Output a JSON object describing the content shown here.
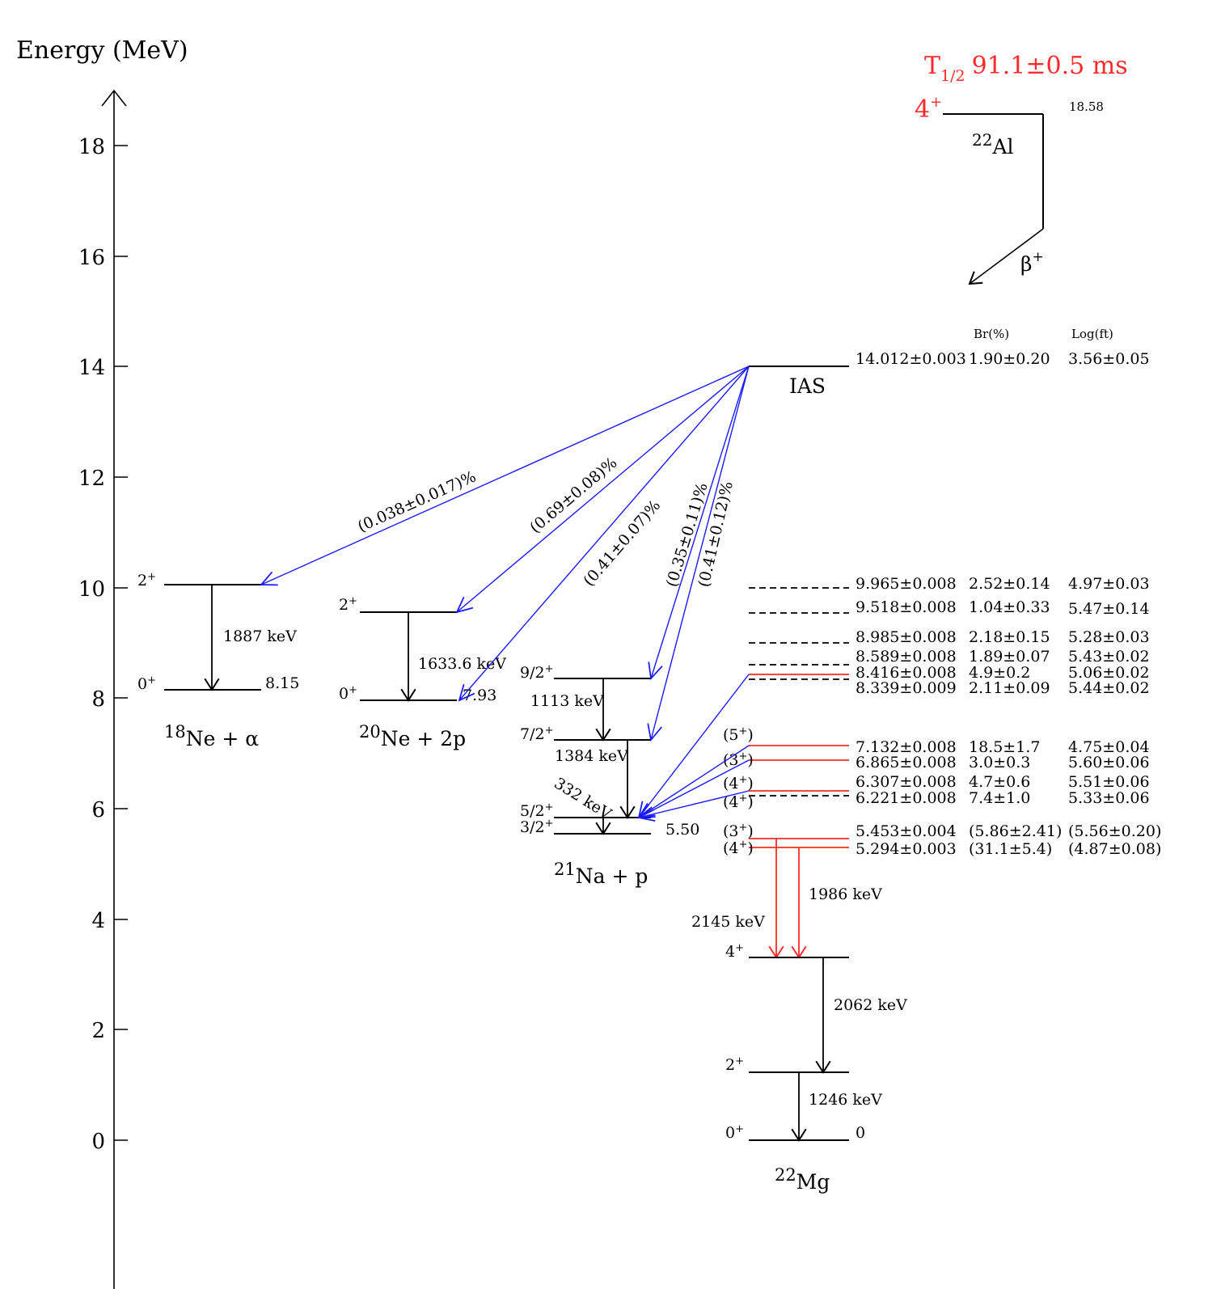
{
  "axis": {
    "title": "Energy (MeV)",
    "ticks": [
      "18",
      "16",
      "14",
      "12",
      "10",
      "8",
      "6",
      "4",
      "2",
      "0"
    ]
  },
  "parent": {
    "isotope_mass": "22",
    "isotope_symbol": "Al",
    "spin": "4",
    "spin_sup": "+",
    "energy": "18.58",
    "halflife_T": "T",
    "halflife_sub": "1/2",
    "halflife_value": "91.1±0.5 ms",
    "decay_label": "β",
    "decay_sup": "+"
  },
  "columns": {
    "br": "Br(%)",
    "logft": "Log(ft)"
  },
  "ias": {
    "label": "IAS",
    "energy": "14.012±0.003",
    "br": "1.90±0.20",
    "logft": "3.56±0.05"
  },
  "mg_states": [
    {
      "energy": "9.965±0.008",
      "br": "2.52±0.14",
      "logft": "4.97±0.03"
    },
    {
      "energy": "9.518±0.008",
      "br": "1.04±0.33",
      "logft": "5.47±0.14"
    },
    {
      "energy": "8.985±0.008",
      "br": "2.18±0.15",
      "logft": "5.28±0.03"
    },
    {
      "energy": "8.589±0.008",
      "br": "1.89±0.07",
      "logft": "5.43±0.02"
    },
    {
      "energy": "8.416±0.008",
      "br": "4.9±0.2",
      "logft": "5.06±0.02"
    },
    {
      "energy": "8.339±0.009",
      "br": "2.11±0.09",
      "logft": "5.44±0.02"
    },
    {
      "energy": "7.132±0.008",
      "br": "18.5±1.7",
      "logft": "4.75±0.04",
      "spin": "(5",
      "spin_sup": "+",
      "spin_end": ")"
    },
    {
      "energy": "6.865±0.008",
      "br": "3.0±0.3",
      "logft": "5.60±0.06",
      "spin": "(3",
      "spin_sup": "+",
      "spin_end": ")"
    },
    {
      "energy": "6.307±0.008",
      "br": "4.7±0.6",
      "logft": "5.51±0.06",
      "spin": "(4",
      "spin_sup": "+",
      "spin_end": ")"
    },
    {
      "energy": "6.221±0.008",
      "br": "7.4±1.0",
      "logft": "5.33±0.06",
      "spin": "(4",
      "spin_sup": "+",
      "spin_end": ")"
    },
    {
      "energy": "5.453±0.004",
      "br": "(5.86±2.41)",
      "logft": "(5.56±0.20)",
      "spin": "(3",
      "spin_sup": "+",
      "spin_end": ")"
    },
    {
      "energy": "5.294±0.003",
      "br": "(31.1±5.4)",
      "logft": "(4.87±0.08)",
      "spin": "(4",
      "spin_sup": "+",
      "spin_end": ")"
    }
  ],
  "mg": {
    "mass": "22",
    "symbol": "Mg",
    "low_states": [
      {
        "spin": "4",
        "sup": "+"
      },
      {
        "spin": "2",
        "sup": "+"
      },
      {
        "spin": "0",
        "sup": "+",
        "energy": "0"
      }
    ],
    "gammas": [
      "2145 keV",
      "1986 keV",
      "2062 keV",
      "1246 keV"
    ]
  },
  "ne18": {
    "mass": "18",
    "label": "Ne + α",
    "threshold": "8.15",
    "states": [
      {
        "spin": "2",
        "sup": "+"
      },
      {
        "spin": "0",
        "sup": "+"
      }
    ],
    "gamma": "1887 keV",
    "branch": "(0.038±0.017)%"
  },
  "ne20": {
    "mass": "20",
    "label": "Ne + 2p",
    "threshold": "7.93",
    "states": [
      {
        "spin": "2",
        "sup": "+"
      },
      {
        "spin": "0",
        "sup": "+"
      }
    ],
    "gamma": "1633.6 keV",
    "branch1": "(0.69±0.08)%",
    "branch2": "(0.41±0.07)%"
  },
  "na21": {
    "mass": "21",
    "label": "Na + p",
    "threshold": "5.50",
    "states": [
      {
        "spin": "9/2",
        "sup": "+"
      },
      {
        "spin": "7/2",
        "sup": "+"
      },
      {
        "spin": "5/2",
        "sup": "+"
      },
      {
        "spin": "3/2",
        "sup": "+"
      }
    ],
    "gammas": [
      "1113 keV",
      "1384 keV",
      "332 keV"
    ],
    "branch1": "(0.35±0.11)%",
    "branch2": "(0.41±0.12)%"
  }
}
